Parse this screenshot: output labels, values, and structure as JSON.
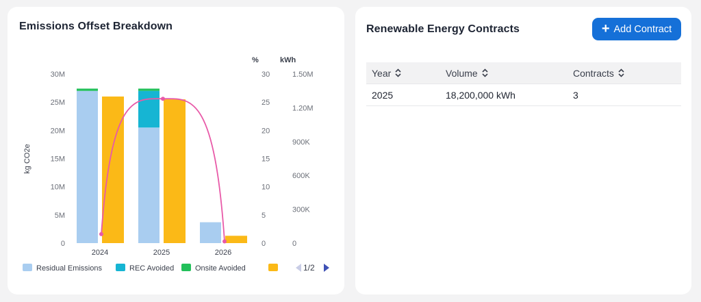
{
  "chart_card": {
    "title": "Emissions Offset Breakdown"
  },
  "chart_data": {
    "type": "bar",
    "categories": [
      "2024",
      "2025",
      "2026"
    ],
    "ylabel": "kg CO2e",
    "ylim": [
      0,
      30000000
    ],
    "yticks": [
      "0",
      "5M",
      "10M",
      "15M",
      "20M",
      "25M",
      "30M"
    ],
    "y2_unit": "%",
    "y2lim": [
      0,
      30
    ],
    "y2ticks": [
      "0",
      "5",
      "10",
      "15",
      "20",
      "25",
      "30"
    ],
    "y3_unit": "kWh",
    "y3lim": [
      0,
      1500000
    ],
    "y3ticks": [
      "0",
      "300K",
      "600K",
      "900K",
      "1.20M",
      "1.50M"
    ],
    "stacked_series": [
      {
        "name": "Residual Emissions",
        "color": "#a9cdf0",
        "values": [
          27000000,
          20500000,
          3700000
        ]
      },
      {
        "name": "REC Avoided",
        "color": "#16b5d3",
        "values": [
          0,
          6500000,
          0
        ]
      },
      {
        "name": "Onsite Avoided",
        "color": "#22c05a",
        "values": [
          400000,
          400000,
          0
        ]
      }
    ],
    "side_series": {
      "name": "",
      "color": "#fbb917",
      "values": [
        26000000,
        25500000,
        1300000
      ]
    },
    "line_series": {
      "name": "",
      "color": "#e85aa8",
      "axis": "%",
      "values": [
        1.6,
        25.6,
        0.3
      ]
    },
    "grid": false,
    "legend_position": "bottom",
    "legend_page": "1/2"
  },
  "contracts_card": {
    "title": "Renewable Energy Contracts",
    "add_button_label": "Add Contract",
    "columns": [
      "Year",
      "Volume",
      "Contracts"
    ],
    "rows": [
      {
        "year": "2025",
        "volume": "18,200,000 kWh",
        "contracts": "3"
      }
    ]
  },
  "colors": {
    "accent": "#1570d8",
    "background": "#f3f3f4"
  }
}
